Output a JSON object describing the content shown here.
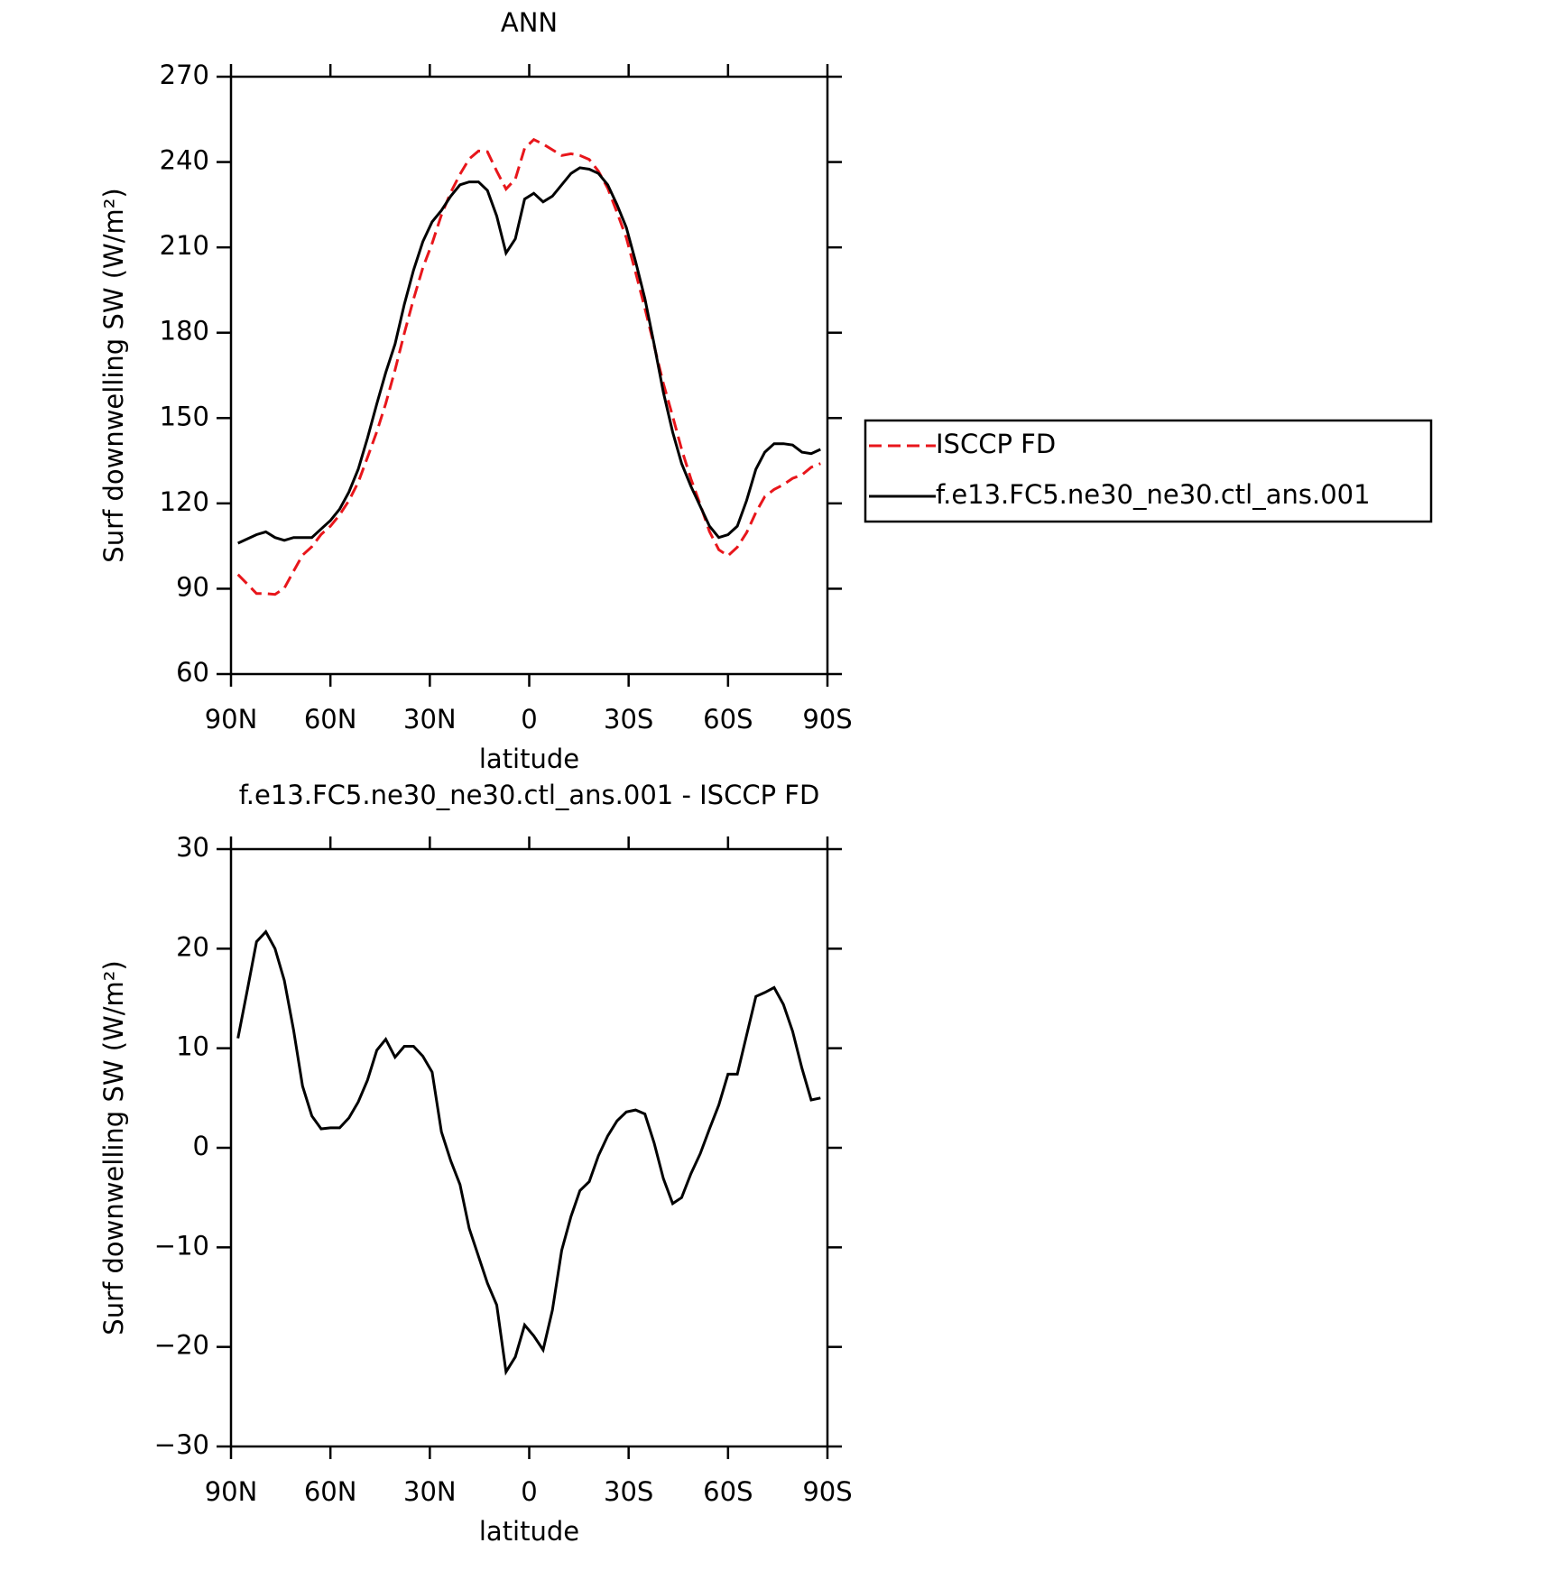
{
  "chart_data": [
    {
      "type": "line",
      "title": "ANN",
      "xlabel": "latitude",
      "ylabel": "Surf downwelling SW (W/m²)",
      "x": [
        87.9,
        85.1,
        82.3,
        79.5,
        76.7,
        73.9,
        71.1,
        68.4,
        65.6,
        62.8,
        60.0,
        57.2,
        54.4,
        51.6,
        48.8,
        46.0,
        43.3,
        40.5,
        37.7,
        34.9,
        32.1,
        29.3,
        26.5,
        23.7,
        20.9,
        18.1,
        15.3,
        12.6,
        9.8,
        7.0,
        4.2,
        1.4,
        -1.4,
        -4.2,
        -7.0,
        -9.8,
        -12.6,
        -15.3,
        -18.1,
        -20.9,
        -23.7,
        -26.5,
        -29.3,
        -32.1,
        -34.9,
        -37.7,
        -40.5,
        -43.3,
        -46.0,
        -48.8,
        -51.6,
        -54.4,
        -57.2,
        -60.0,
        -62.8,
        -65.6,
        -68.4,
        -71.1,
        -73.9,
        -76.7,
        -79.5,
        -82.3,
        -85.1,
        -87.9
      ],
      "series": [
        {
          "name": "ISCCP FD",
          "color": "#e8161b",
          "linestyle": "dashed",
          "values": [
            95,
            91.7,
            88.3,
            88.3,
            88,
            90.2,
            96.2,
            101.8,
            104.8,
            109.1,
            112,
            116,
            121,
            127.4,
            136.2,
            145.2,
            155.1,
            166.9,
            179.8,
            191.8,
            202.8,
            211.4,
            221.4,
            229.3,
            235.7,
            241.1,
            243.9,
            243.6,
            236.8,
            230.5,
            234,
            244.8,
            247.9,
            246.3,
            244.3,
            242.3,
            242.9,
            242.3,
            240.9,
            236.8,
            230.8,
            222.3,
            213.4,
            201.2,
            188.6,
            175.5,
            162.1,
            150.6,
            139,
            128.6,
            119.6,
            110.1,
            103.7,
            101.6,
            104.6,
            109.7,
            116.8,
            122.4,
            124.9,
            126.6,
            128.8,
            130,
            132.7,
            134
          ]
        },
        {
          "name": "f.e13.FC5.ne30_ne30.ctl_ans.001",
          "color": "#000000",
          "linestyle": "solid",
          "values": [
            106,
            107.5,
            109,
            110,
            108,
            107,
            108,
            108,
            108,
            111,
            114,
            118,
            124,
            132,
            143,
            155,
            166,
            176,
            190,
            202,
            212,
            219,
            223,
            228,
            232,
            233,
            233,
            230,
            221,
            208,
            213,
            227,
            229,
            226,
            228,
            232,
            236,
            238,
            237.5,
            236,
            232,
            225,
            217,
            205,
            192,
            176,
            159,
            145,
            134,
            126,
            119,
            112,
            108,
            109,
            112,
            121,
            132,
            138,
            141,
            141,
            140.5,
            138,
            137.5,
            139
          ]
        }
      ],
      "xlim": [
        90,
        -90
      ],
      "xticks": [
        {
          "value": 90,
          "label": "90N"
        },
        {
          "value": 60,
          "label": "60N"
        },
        {
          "value": 30,
          "label": "30N"
        },
        0,
        {
          "value": -30,
          "label": "30S"
        },
        {
          "value": -60,
          "label": "60S"
        },
        {
          "value": -90,
          "label": "90S"
        }
      ],
      "ylim": [
        60,
        270
      ],
      "yticks": [
        60,
        90,
        120,
        150,
        180,
        210,
        240,
        270
      ],
      "legend": "right"
    },
    {
      "type": "line",
      "title": "f.e13.FC5.ne30_ne30.ctl_ans.001 - ISCCP FD",
      "xlabel": "latitude",
      "ylabel": "Surf downwelling SW (W/m²)",
      "x": [
        87.9,
        85.1,
        82.3,
        79.5,
        76.7,
        73.9,
        71.1,
        68.4,
        65.6,
        62.8,
        60.0,
        57.2,
        54.4,
        51.6,
        48.8,
        46.0,
        43.3,
        40.5,
        37.7,
        34.9,
        32.1,
        29.3,
        26.5,
        23.7,
        20.9,
        18.1,
        15.3,
        12.6,
        9.8,
        7.0,
        4.2,
        1.4,
        -1.4,
        -4.2,
        -7.0,
        -9.8,
        -12.6,
        -15.3,
        -18.1,
        -20.9,
        -23.7,
        -26.5,
        -29.3,
        -32.1,
        -34.9,
        -37.7,
        -40.5,
        -43.3,
        -46.0,
        -48.8,
        -51.6,
        -54.4,
        -57.2,
        -60.0,
        -62.8,
        -65.6,
        -68.4,
        -71.1,
        -73.9,
        -76.7,
        -79.5,
        -82.3,
        -85.1,
        -87.9
      ],
      "series": [
        {
          "color": "#000000",
          "linestyle": "solid",
          "values": [
            11.0,
            15.8,
            20.7,
            21.7,
            20,
            16.8,
            11.8,
            6.2,
            3.2,
            1.9,
            2.0,
            2.0,
            3.0,
            4.6,
            6.8,
            9.8,
            10.9,
            9.1,
            10.2,
            10.2,
            9.2,
            7.6,
            1.6,
            -1.3,
            -3.7,
            -8.1,
            -10.9,
            -13.6,
            -15.8,
            -22.5,
            -21.0,
            -17.8,
            -18.9,
            -20.3,
            -16.3,
            -10.3,
            -6.9,
            -4.3,
            -3.4,
            -0.8,
            1.2,
            2.7,
            3.6,
            3.8,
            3.4,
            0.5,
            -3.1,
            -5.6,
            -5.0,
            -2.6,
            -0.6,
            1.9,
            4.3,
            7.4,
            7.4,
            11.3,
            15.2,
            15.6,
            16.1,
            14.4,
            11.7,
            8.0,
            4.8,
            5.0
          ]
        }
      ],
      "xlim": [
        90,
        -90
      ],
      "xticks": [
        {
          "value": 90,
          "label": "90N"
        },
        {
          "value": 60,
          "label": "60N"
        },
        {
          "value": 30,
          "label": "30N"
        },
        0,
        {
          "value": -30,
          "label": "30S"
        },
        {
          "value": -60,
          "label": "60S"
        },
        {
          "value": -90,
          "label": "90S"
        }
      ],
      "ylim": [
        -30,
        30
      ],
      "yticks": [
        {
          "value": -30,
          "label": "−30"
        },
        {
          "value": -20,
          "label": "−20"
        },
        {
          "value": -10,
          "label": "−10"
        },
        0,
        10,
        20,
        30
      ]
    }
  ]
}
